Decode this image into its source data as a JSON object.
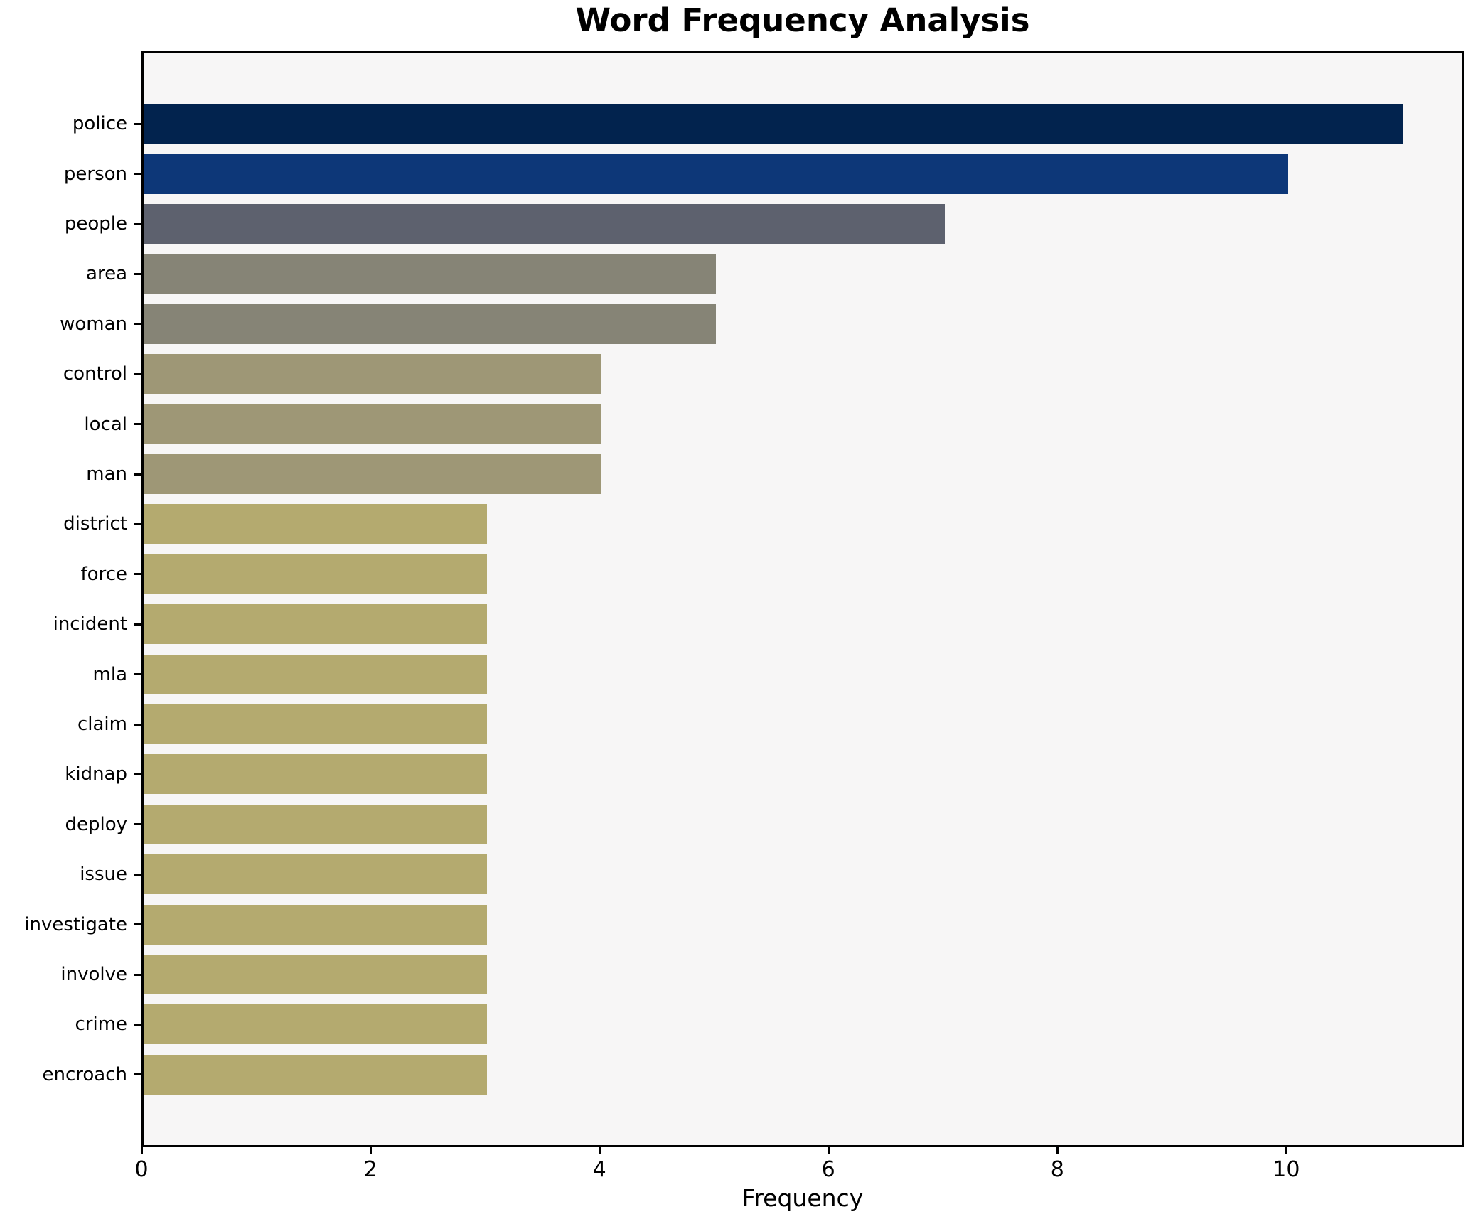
{
  "title": "Word Frequency Analysis",
  "xlabel": "Frequency",
  "colors": {
    "figure_bg": "#ffffff",
    "plot_bg": "#f7f6f6",
    "spine": "#000000",
    "text": "#000000"
  },
  "chart_data": {
    "type": "bar",
    "orientation": "horizontal",
    "title": "Word Frequency Analysis",
    "xlabel": "Frequency",
    "ylabel": "",
    "categories": [
      "police",
      "person",
      "people",
      "area",
      "woman",
      "control",
      "local",
      "man",
      "district",
      "force",
      "incident",
      "mla",
      "claim",
      "kidnap",
      "deploy",
      "issue",
      "investigate",
      "involve",
      "crime",
      "encroach"
    ],
    "values": [
      11,
      10,
      7,
      5,
      5,
      4,
      4,
      4,
      3,
      3,
      3,
      3,
      3,
      3,
      3,
      3,
      3,
      3,
      3,
      3
    ],
    "bar_colors": [
      "#02234e",
      "#0d3778",
      "#5d616e",
      "#868476",
      "#868476",
      "#9e9776",
      "#9e9776",
      "#9e9776",
      "#b4aa6f",
      "#b4aa6f",
      "#b4aa6f",
      "#b4aa6f",
      "#b4aa6f",
      "#b4aa6f",
      "#b4aa6f",
      "#b4aa6f",
      "#b4aa6f",
      "#b4aa6f",
      "#b4aa6f",
      "#b4aa6f"
    ],
    "xlim": [
      0,
      11.55
    ],
    "xticks": [
      0,
      2,
      4,
      6,
      8,
      10
    ],
    "grid": false,
    "legend": null
  }
}
